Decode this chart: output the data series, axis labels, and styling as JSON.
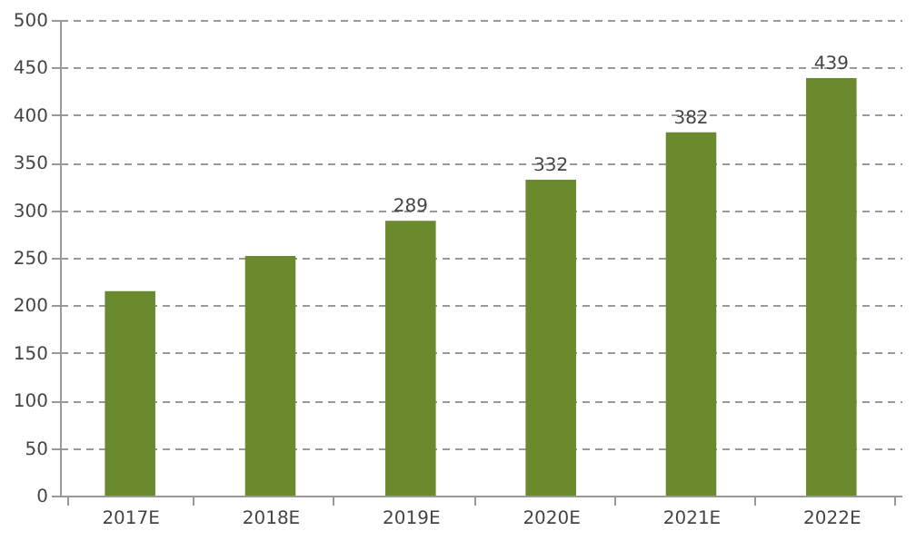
{
  "chart_data": {
    "type": "bar",
    "categories": [
      "2017E",
      "2018E",
      "2019E",
      "2020E",
      "2021E",
      "2022E"
    ],
    "values": [
      215,
      252,
      289,
      332,
      382,
      439
    ],
    "value_labels": [
      null,
      null,
      "289",
      "332",
      "382",
      "439"
    ],
    "color": "#6b8a2e",
    "ylim": [
      0,
      500
    ],
    "yticks": [
      0,
      50,
      100,
      150,
      200,
      250,
      300,
      350,
      400,
      450,
      500
    ],
    "grid": "y"
  }
}
